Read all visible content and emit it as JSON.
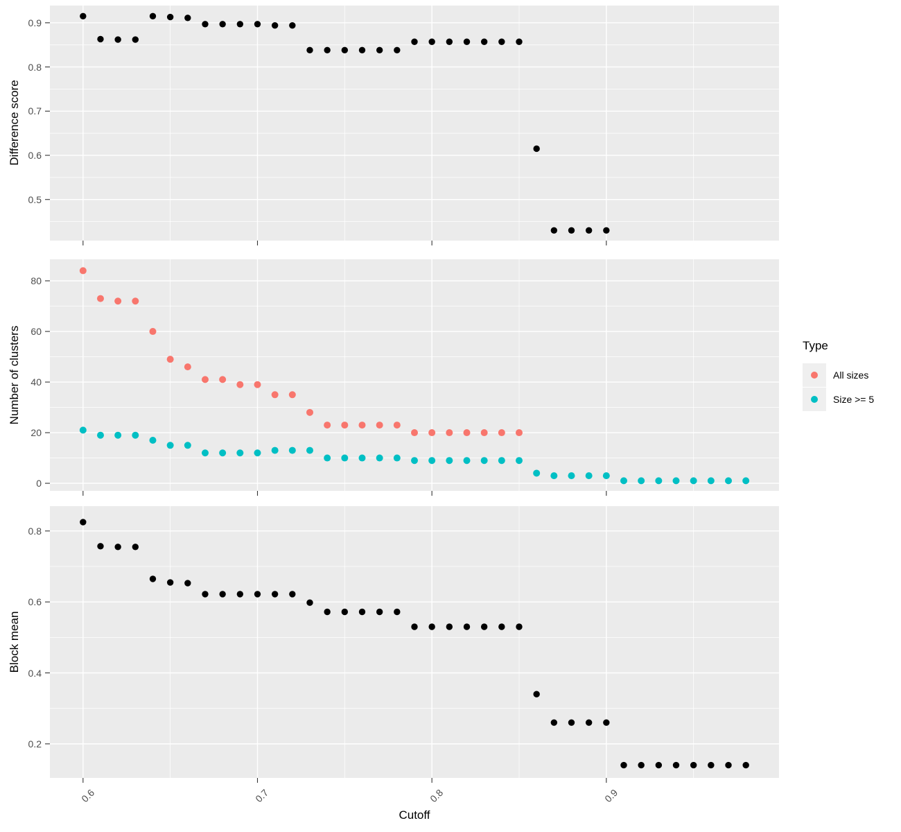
{
  "figure": {
    "xlabel": "Cutoff",
    "background": "#FFFFFF",
    "panel_background": "#EBEBEB",
    "gridline_color": "#FFFFFF",
    "tick_color": "#333333",
    "tick_label_color": "#4D4D4D"
  },
  "legend": {
    "title": "Type",
    "position": "right",
    "items": [
      {
        "label": "All sizes",
        "color": "#F8766D"
      },
      {
        "label": "Size >= 5",
        "color": "#00BFC4"
      }
    ]
  },
  "chart_data": [
    {
      "type": "scatter",
      "panel": "difference-score",
      "ylabel": "Difference score",
      "xlabel": "Cutoff",
      "xlim": [
        0.581,
        0.999
      ],
      "ylim": [
        0.407,
        0.939
      ],
      "grid": true,
      "x_ticks": {
        "values": [
          0.6,
          0.7,
          0.8,
          0.9
        ],
        "labels": [
          "0.6",
          "0.7",
          "0.8",
          "0.9"
        ]
      },
      "x_minor": [
        0.65,
        0.75,
        0.85,
        0.95
      ],
      "y_ticks": {
        "values": [
          0.5,
          0.6,
          0.7,
          0.8,
          0.9
        ],
        "labels": [
          "0.5",
          "0.6",
          "0.7",
          "0.8",
          "0.9"
        ]
      },
      "y_minor": [
        0.45,
        0.55,
        0.65,
        0.75,
        0.85
      ],
      "series": [
        {
          "name": "Difference score",
          "color": "#000000",
          "x": [
            0.6,
            0.61,
            0.62,
            0.63,
            0.64,
            0.65,
            0.66,
            0.67,
            0.68,
            0.69,
            0.7,
            0.71,
            0.72,
            0.73,
            0.74,
            0.75,
            0.76,
            0.77,
            0.78,
            0.79,
            0.8,
            0.81,
            0.82,
            0.83,
            0.84,
            0.85,
            0.86,
            0.87,
            0.88,
            0.89,
            0.9
          ],
          "y": [
            0.915,
            0.863,
            0.862,
            0.862,
            0.915,
            0.913,
            0.911,
            0.897,
            0.897,
            0.897,
            0.897,
            0.894,
            0.894,
            0.838,
            0.838,
            0.838,
            0.838,
            0.838,
            0.838,
            0.857,
            0.857,
            0.857,
            0.857,
            0.857,
            0.857,
            0.857,
            0.615,
            0.43,
            0.43,
            0.43,
            0.43
          ]
        }
      ]
    },
    {
      "type": "scatter",
      "panel": "number-of-clusters",
      "ylabel": "Number of clusters",
      "xlabel": "Cutoff",
      "xlim": [
        0.581,
        0.999
      ],
      "ylim": [
        -3.0,
        88.5
      ],
      "grid": true,
      "x_ticks": {
        "values": [
          0.6,
          0.7,
          0.8,
          0.9
        ],
        "labels": [
          "0.6",
          "0.7",
          "0.8",
          "0.9"
        ]
      },
      "x_minor": [
        0.65,
        0.75,
        0.85,
        0.95
      ],
      "y_ticks": {
        "values": [
          0,
          20,
          40,
          60,
          80
        ],
        "labels": [
          "0",
          "20",
          "40",
          "60",
          "80"
        ]
      },
      "y_minor": [
        10,
        30,
        50,
        70
      ],
      "series": [
        {
          "name": "All sizes",
          "color": "#F8766D",
          "x": [
            0.6,
            0.61,
            0.62,
            0.63,
            0.64,
            0.65,
            0.66,
            0.67,
            0.68,
            0.69,
            0.7,
            0.71,
            0.72,
            0.73,
            0.74,
            0.75,
            0.76,
            0.77,
            0.78,
            0.79,
            0.8,
            0.81,
            0.82,
            0.83,
            0.84,
            0.85
          ],
          "y": [
            84,
            73,
            72,
            72,
            60,
            49,
            46,
            41,
            41,
            39,
            39,
            35,
            35,
            28,
            23,
            23,
            23,
            23,
            23,
            20,
            20,
            20,
            20,
            20,
            20,
            20
          ]
        },
        {
          "name": "Size >= 5",
          "color": "#00BFC4",
          "x": [
            0.6,
            0.61,
            0.62,
            0.63,
            0.64,
            0.65,
            0.66,
            0.67,
            0.68,
            0.69,
            0.7,
            0.71,
            0.72,
            0.73,
            0.74,
            0.75,
            0.76,
            0.77,
            0.78,
            0.79,
            0.8,
            0.81,
            0.82,
            0.83,
            0.84,
            0.85,
            0.86,
            0.87,
            0.88,
            0.89,
            0.9,
            0.91,
            0.92,
            0.93,
            0.94,
            0.95,
            0.96,
            0.97,
            0.98
          ],
          "y": [
            21,
            19,
            19,
            19,
            17,
            15,
            15,
            12,
            12,
            12,
            12,
            13,
            13,
            13,
            10,
            10,
            10,
            10,
            10,
            9,
            9,
            9,
            9,
            9,
            9,
            9,
            4,
            3,
            3,
            3,
            3,
            1,
            1,
            1,
            1,
            1,
            1,
            1,
            1
          ]
        }
      ]
    },
    {
      "type": "scatter",
      "panel": "block-mean",
      "ylabel": "Block mean",
      "xlabel": "Cutoff",
      "xlim": [
        0.581,
        0.999
      ],
      "ylim": [
        0.104,
        0.87
      ],
      "grid": true,
      "x_ticks": {
        "values": [
          0.6,
          0.7,
          0.8,
          0.9
        ],
        "labels": [
          "0.6",
          "0.7",
          "0.8",
          "0.9"
        ]
      },
      "x_minor": [
        0.65,
        0.75,
        0.85,
        0.95
      ],
      "y_ticks": {
        "values": [
          0.2,
          0.4,
          0.6,
          0.8
        ],
        "labels": [
          "0.2",
          "0.4",
          "0.6",
          "0.8"
        ]
      },
      "y_minor": [
        0.3,
        0.5,
        0.7
      ],
      "series": [
        {
          "name": "Block mean",
          "color": "#000000",
          "x": [
            0.6,
            0.61,
            0.62,
            0.63,
            0.64,
            0.65,
            0.66,
            0.67,
            0.68,
            0.69,
            0.7,
            0.71,
            0.72,
            0.73,
            0.74,
            0.75,
            0.76,
            0.77,
            0.78,
            0.79,
            0.8,
            0.81,
            0.82,
            0.83,
            0.84,
            0.85,
            0.86,
            0.87,
            0.88,
            0.89,
            0.9,
            0.91,
            0.92,
            0.93,
            0.94,
            0.95,
            0.96,
            0.97,
            0.98
          ],
          "y": [
            0.825,
            0.757,
            0.755,
            0.755,
            0.665,
            0.655,
            0.653,
            0.622,
            0.622,
            0.622,
            0.622,
            0.622,
            0.622,
            0.598,
            0.572,
            0.572,
            0.572,
            0.572,
            0.572,
            0.53,
            0.53,
            0.53,
            0.53,
            0.53,
            0.53,
            0.53,
            0.34,
            0.26,
            0.26,
            0.26,
            0.26,
            0.14,
            0.14,
            0.14,
            0.14,
            0.14,
            0.14,
            0.14,
            0.14
          ]
        }
      ]
    }
  ]
}
